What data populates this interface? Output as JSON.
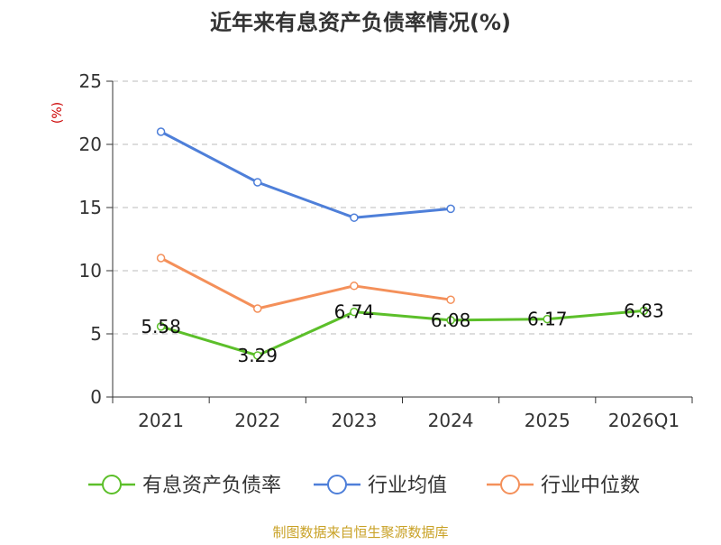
{
  "chart_data": {
    "type": "line",
    "title": "近年来有息资产负债率情况(%)",
    "ylabel": "(%)",
    "xlabel": "",
    "categories": [
      "2021",
      "2022",
      "2023",
      "2024",
      "2025",
      "2026Q1"
    ],
    "ylim": [
      0,
      25
    ],
    "yticks": [
      0,
      5,
      10,
      15,
      20,
      25
    ],
    "grid": true,
    "legend_position": "bottom",
    "series": [
      {
        "name": "有息资产负债率",
        "values": [
          5.58,
          3.29,
          6.74,
          6.08,
          6.17,
          6.83
        ],
        "labels": [
          "5.58",
          "3.29",
          "6.74",
          "6.08",
          "6.17",
          "6.83"
        ],
        "color": "#5cbf2a"
      },
      {
        "name": "行业均值",
        "values": [
          21.0,
          17.0,
          14.2,
          14.9,
          null,
          null
        ],
        "color": "#4e7fd9"
      },
      {
        "name": "行业中位数",
        "values": [
          11.0,
          7.0,
          8.8,
          7.7,
          null,
          null
        ],
        "color": "#f4905a"
      }
    ]
  },
  "colors": {
    "axis": "#333333",
    "grid": "#bbbbbb",
    "unit_label": "#cc0000",
    "source": "#c9a227"
  },
  "source_text": "制图数据来自恒生聚源数据库"
}
